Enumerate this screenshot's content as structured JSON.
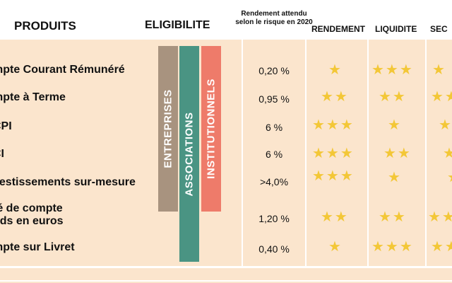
{
  "header": {
    "produits": "PRODUITS",
    "eligibilite": "ELIGIBILITE",
    "rendement_attendu": "Rendement attendu selon le risque en 2020",
    "rendement": "RENDEMENT",
    "liquidite": "LIQUIDITE",
    "securite": "SEC"
  },
  "eligibility": [
    {
      "label": "ENTREPRISES",
      "color": "#a8937f"
    },
    {
      "label": "ASSOCIATIONS",
      "color": "#4a9483"
    },
    {
      "label": "INSTITUTIONNELS",
      "color": "#ee7b6a"
    }
  ],
  "rows": [
    {
      "name": "mpte Courant Rémunéré",
      "rate": "0,20 %",
      "rendement": 1,
      "liquidite": 3,
      "securite": 1
    },
    {
      "name": "mpte à Terme",
      "rate": "0,95 %",
      "rendement": 2,
      "liquidite": 2,
      "securite": 2
    },
    {
      "name": "CPI",
      "rate": "6 %",
      "rendement": 3,
      "liquidite": 1,
      "securite": 1
    },
    {
      "name": "CI",
      "rate": "6 %",
      "rendement": 3,
      "liquidite": 2,
      "securite": 1
    },
    {
      "name": "vestissements sur-mesure",
      "rate": ">4,0%",
      "rendement": 3,
      "liquidite": 1,
      "securite": 1
    },
    {
      "name": "té de compte",
      "name2": "nds en euros",
      "rate": "1,20 %",
      "rendement": 2,
      "liquidite": 2,
      "securite": 2
    },
    {
      "name": "mpte sur Livret",
      "rate": "0,40 %",
      "rendement": 1,
      "liquidite": 3,
      "securite": 2
    }
  ],
  "star_color": "#f3c737",
  "background_color": "#fbe5cd"
}
